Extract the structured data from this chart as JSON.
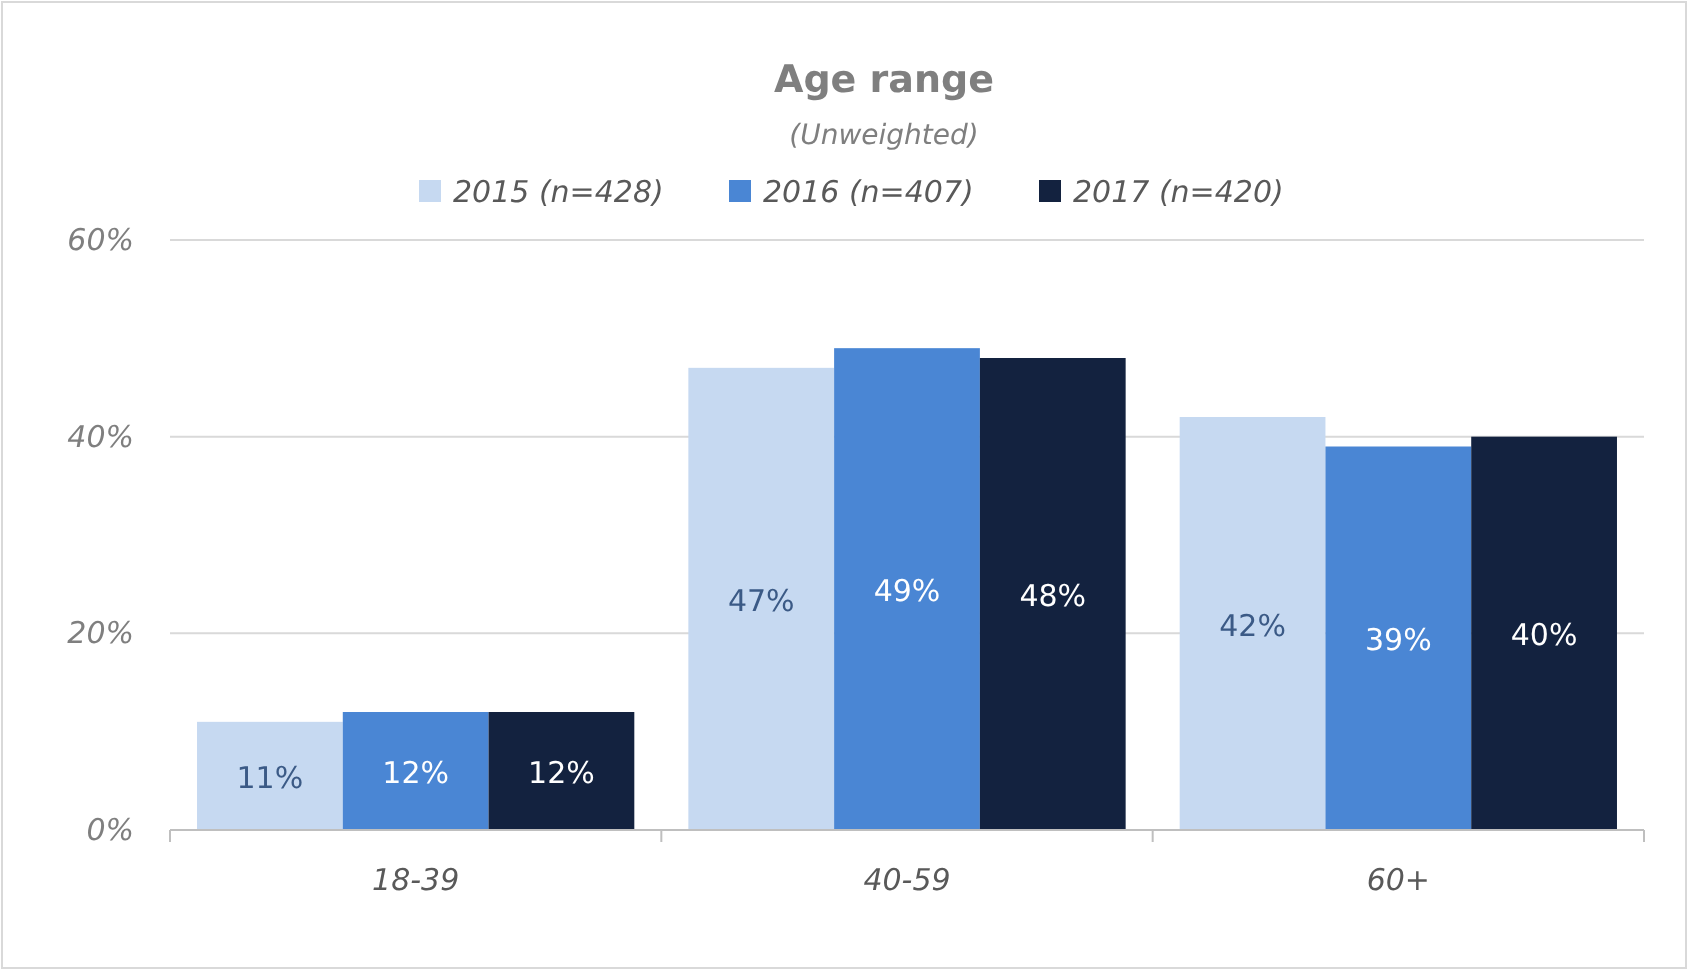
{
  "chart_data": {
    "type": "bar",
    "title": "Age range",
    "subtitle": "(Unweighted)",
    "categories": [
      "18-39",
      "40-59",
      "60+"
    ],
    "series": [
      {
        "name": "2015 (n=428)",
        "color": "#c6d9f1",
        "values": [
          11,
          47,
          42
        ],
        "value_labels": [
          "11%",
          "47%",
          "42%"
        ]
      },
      {
        "name": "2016 (n=407)",
        "color": "#4a86d4",
        "values": [
          12,
          49,
          39
        ],
        "value_labels": [
          "12%",
          "49%",
          "39%"
        ]
      },
      {
        "name": "2017 (n=420)",
        "color": "#13223f",
        "values": [
          12,
          48,
          40
        ],
        "value_labels": [
          "12%",
          "48%",
          "40%"
        ]
      }
    ],
    "ylim": [
      0,
      60
    ],
    "yticks": [
      {
        "value": 0,
        "label": "0%"
      },
      {
        "value": 20,
        "label": "20%"
      },
      {
        "value": 40,
        "label": "40%"
      },
      {
        "value": 60,
        "label": "60%"
      }
    ],
    "grid": "y",
    "legend": "top"
  }
}
